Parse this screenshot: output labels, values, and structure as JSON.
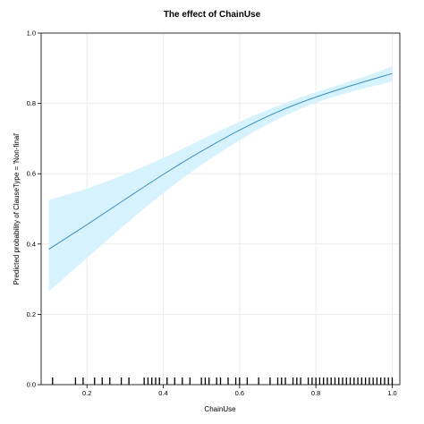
{
  "chart_data": {
    "type": "line",
    "title": "The effect of ChainUse",
    "xlabel": "ChainUse",
    "ylabel": "Predicted probability of ClauseType = 'Non-final'",
    "xlim": [
      0.08,
      1.02
    ],
    "ylim": [
      0.0,
      1.0
    ],
    "grid": true,
    "x_ticks": [
      0.2,
      0.4,
      0.6,
      0.8,
      1.0
    ],
    "x_tick_labels": [
      "0.2",
      "0.4",
      "0.6",
      "0.8",
      "1.0"
    ],
    "y_ticks": [
      0.0,
      0.2,
      0.4,
      0.6,
      0.8,
      1.0
    ],
    "y_tick_labels": [
      "0.0",
      "0.2",
      "0.4",
      "0.6",
      "0.8",
      "1.0"
    ],
    "series": [
      {
        "x": [
          0.1,
          0.2,
          0.3,
          0.4,
          0.5,
          0.6,
          0.7,
          0.8,
          0.9,
          1.0
        ],
        "fit": [
          0.385,
          0.455,
          0.527,
          0.598,
          0.664,
          0.724,
          0.776,
          0.818,
          0.853,
          0.885
        ],
        "lower": [
          0.265,
          0.36,
          0.455,
          0.545,
          0.625,
          0.695,
          0.755,
          0.802,
          0.835,
          0.862
        ],
        "upper": [
          0.525,
          0.558,
          0.598,
          0.645,
          0.697,
          0.748,
          0.793,
          0.832,
          0.866,
          0.905
        ]
      }
    ],
    "rug": [
      0.11,
      0.17,
      0.19,
      0.22,
      0.24,
      0.26,
      0.29,
      0.31,
      0.35,
      0.36,
      0.37,
      0.38,
      0.39,
      0.41,
      0.43,
      0.45,
      0.47,
      0.5,
      0.51,
      0.52,
      0.54,
      0.55,
      0.57,
      0.59,
      0.6,
      0.62,
      0.65,
      0.68,
      0.7,
      0.71,
      0.72,
      0.74,
      0.75,
      0.76,
      0.78,
      0.79,
      0.8,
      0.81,
      0.82,
      0.83,
      0.84,
      0.85,
      0.86,
      0.87,
      0.88,
      0.89,
      0.9,
      0.91,
      0.92,
      0.93,
      0.94,
      0.95,
      0.96,
      0.97,
      0.98,
      0.99,
      1.0
    ],
    "colors": {
      "line": "#3c8dbf",
      "band": "#d6f3fd",
      "grid": "#ebebeb",
      "frame": "#000000"
    }
  }
}
